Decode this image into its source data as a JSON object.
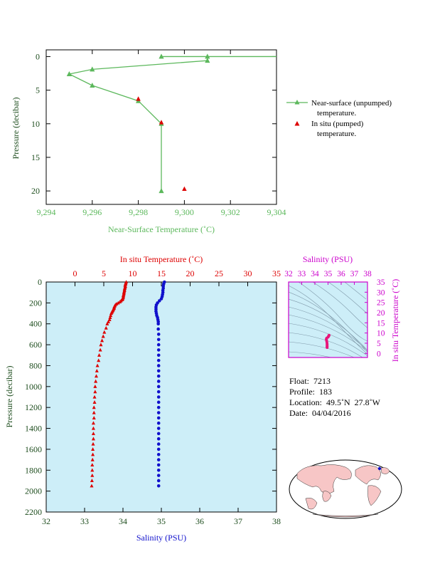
{
  "colors": {
    "near_surface": "#5cb85c",
    "pumped": "#dd0000",
    "insitu_temp": "#dd0000",
    "salinity": "#1010cc",
    "salinity_axis": "#cc00cc",
    "axis_text": "#1f4e1f",
    "plot_bg": "#cdeef8",
    "land": "#f7c6c6",
    "ocean": "#ffffff"
  },
  "chart_data": [
    {
      "type": "line",
      "xlabel": "Near-Surface Temperature (˚C)",
      "ylabel": "Pressure (decibar)",
      "xlim": [
        9.294,
        9.304
      ],
      "ylim": [
        22,
        -1
      ],
      "x_ticks": [
        9.294,
        9.296,
        9.298,
        9.3,
        9.302,
        9.304
      ],
      "x_tick_labels": [
        "9,294",
        "9,296",
        "9,298",
        "9,300",
        "9,302",
        "9,304"
      ],
      "y_ticks": [
        0,
        5,
        10,
        15,
        20
      ],
      "legend_position": "right",
      "series": [
        {
          "name": "Near-surface (unpumped) temperature.",
          "legend_line1": "Near-surface (unpumped)",
          "legend_line2": "temperature.",
          "marker": "triangle-line",
          "points": [
            {
              "x": 9.304,
              "y": 0.0
            },
            {
              "x": 9.299,
              "y": 0.0
            },
            {
              "x": 9.301,
              "y": 0.0
            },
            {
              "x": 9.301,
              "y": 0.6
            },
            {
              "x": 9.296,
              "y": 1.9
            },
            {
              "x": 9.295,
              "y": 2.6
            },
            {
              "x": 9.296,
              "y": 4.3
            },
            {
              "x": 9.298,
              "y": 6.6
            },
            {
              "x": 9.299,
              "y": 10.0
            },
            {
              "x": 9.299,
              "y": 20.0
            }
          ]
        },
        {
          "name": "In situ (pumped) temperature.",
          "legend_line1": "In situ (pumped)",
          "legend_line2": "temperature.",
          "marker": "triangle",
          "points": [
            {
              "x": 9.298,
              "y": 6.3
            },
            {
              "x": 9.299,
              "y": 9.8
            },
            {
              "x": 9.3,
              "y": 19.7
            }
          ]
        }
      ]
    },
    {
      "type": "scatter",
      "ylabel": "Pressure (decibar)",
      "ylim": [
        2200,
        0
      ],
      "y_ticks": [
        0,
        200,
        400,
        600,
        800,
        1000,
        1200,
        1400,
        1600,
        1800,
        2000,
        2200
      ],
      "top_axis": {
        "label": "In situ Temperature (˚C)",
        "lim": [
          -5,
          35
        ],
        "ticks": [
          0,
          5,
          10,
          15,
          20,
          25,
          30,
          35
        ]
      },
      "bottom_axis": {
        "label": "Salinity (PSU)",
        "lim": [
          32,
          38
        ],
        "ticks": [
          32,
          33,
          34,
          35,
          36,
          37,
          38
        ]
      },
      "series": [
        {
          "name": "In situ Temperature",
          "axis": "top",
          "points": [
            [
              8.9,
              0
            ],
            [
              8.8,
              10
            ],
            [
              8.8,
              20
            ],
            [
              8.7,
              30
            ],
            [
              8.75,
              40
            ],
            [
              8.7,
              50
            ],
            [
              8.65,
              60
            ],
            [
              8.6,
              70
            ],
            [
              8.6,
              80
            ],
            [
              8.55,
              90
            ],
            [
              8.5,
              100
            ],
            [
              8.5,
              110
            ],
            [
              8.45,
              120
            ],
            [
              8.4,
              130
            ],
            [
              8.4,
              140
            ],
            [
              8.35,
              150
            ],
            [
              8.3,
              160
            ],
            [
              8.2,
              170
            ],
            [
              8.0,
              180
            ],
            [
              7.8,
              190
            ],
            [
              7.5,
              200
            ],
            [
              7.2,
              210
            ],
            [
              7.0,
              220
            ],
            [
              6.9,
              230
            ],
            [
              6.8,
              240
            ],
            [
              6.8,
              250
            ],
            [
              6.7,
              260
            ],
            [
              6.6,
              270
            ],
            [
              6.5,
              280
            ],
            [
              6.4,
              290
            ],
            [
              6.3,
              300
            ],
            [
              6.2,
              320
            ],
            [
              6.1,
              340
            ],
            [
              6.0,
              360
            ],
            [
              5.8,
              380
            ],
            [
              5.6,
              400
            ],
            [
              5.4,
              440
            ],
            [
              5.1,
              480
            ],
            [
              4.9,
              520
            ],
            [
              4.7,
              560
            ],
            [
              4.5,
              600
            ],
            [
              4.4,
              650
            ],
            [
              4.2,
              700
            ],
            [
              4.1,
              750
            ],
            [
              3.9,
              800
            ],
            [
              3.8,
              850
            ],
            [
              3.7,
              900
            ],
            [
              3.6,
              950
            ],
            [
              3.5,
              1000
            ],
            [
              3.5,
              1050
            ],
            [
              3.4,
              1100
            ],
            [
              3.4,
              1150
            ],
            [
              3.3,
              1200
            ],
            [
              3.3,
              1250
            ],
            [
              3.3,
              1300
            ],
            [
              3.2,
              1350
            ],
            [
              3.2,
              1400
            ],
            [
              3.2,
              1450
            ],
            [
              3.2,
              1500
            ],
            [
              3.15,
              1550
            ],
            [
              3.1,
              1600
            ],
            [
              3.1,
              1650
            ],
            [
              3.05,
              1700
            ],
            [
              3.0,
              1750
            ],
            [
              3.0,
              1800
            ],
            [
              3.0,
              1850
            ],
            [
              2.95,
              1900
            ],
            [
              2.9,
              1950
            ]
          ]
        },
        {
          "name": "Salinity",
          "axis": "bottom",
          "points": [
            [
              35.08,
              0
            ],
            [
              35.06,
              20
            ],
            [
              35.05,
              40
            ],
            [
              35.05,
              60
            ],
            [
              35.04,
              80
            ],
            [
              35.04,
              100
            ],
            [
              35.03,
              120
            ],
            [
              35.02,
              140
            ],
            [
              35.0,
              160
            ],
            [
              34.95,
              180
            ],
            [
              34.9,
              200
            ],
            [
              34.87,
              220
            ],
            [
              34.86,
              240
            ],
            [
              34.86,
              260
            ],
            [
              34.86,
              280
            ],
            [
              34.87,
              300
            ],
            [
              34.88,
              320
            ],
            [
              34.9,
              340
            ],
            [
              34.91,
              360
            ],
            [
              34.92,
              380
            ],
            [
              34.92,
              400
            ],
            [
              34.92,
              450
            ],
            [
              34.93,
              500
            ],
            [
              34.93,
              550
            ],
            [
              34.93,
              600
            ],
            [
              34.93,
              650
            ],
            [
              34.93,
              700
            ],
            [
              34.93,
              750
            ],
            [
              34.93,
              800
            ],
            [
              34.93,
              850
            ],
            [
              34.93,
              900
            ],
            [
              34.93,
              950
            ],
            [
              34.93,
              1000
            ],
            [
              34.93,
              1050
            ],
            [
              34.93,
              1100
            ],
            [
              34.93,
              1150
            ],
            [
              34.93,
              1200
            ],
            [
              34.93,
              1250
            ],
            [
              34.93,
              1300
            ],
            [
              34.93,
              1350
            ],
            [
              34.93,
              1400
            ],
            [
              34.93,
              1450
            ],
            [
              34.93,
              1500
            ],
            [
              34.93,
              1550
            ],
            [
              34.93,
              1600
            ],
            [
              34.93,
              1650
            ],
            [
              34.93,
              1700
            ],
            [
              34.93,
              1750
            ],
            [
              34.93,
              1800
            ],
            [
              34.93,
              1850
            ],
            [
              34.93,
              1900
            ],
            [
              34.93,
              1950
            ]
          ]
        }
      ]
    },
    {
      "type": "scatter",
      "xlabel": "Salinity (PSU)",
      "ylabel": "In situ Temperature (˚C)",
      "xlim": [
        32,
        38
      ],
      "ylim": [
        -2,
        35
      ],
      "x_ticks": [
        32,
        33,
        34,
        35,
        36,
        37,
        38
      ],
      "y_ticks": [
        0,
        5,
        10,
        15,
        20,
        25,
        30,
        35
      ],
      "series": [
        {
          "name": "T-S",
          "points": [
            [
              34.93,
              2.9
            ],
            [
              34.93,
              3.2
            ],
            [
              34.93,
              3.5
            ],
            [
              34.93,
              4.0
            ],
            [
              34.93,
              4.5
            ],
            [
              34.92,
              5.2
            ],
            [
              34.9,
              6.0
            ],
            [
              34.88,
              6.6
            ],
            [
              34.87,
              7.0
            ],
            [
              34.9,
              7.5
            ],
            [
              35.0,
              8.0
            ],
            [
              35.04,
              8.4
            ],
            [
              35.06,
              8.7
            ],
            [
              35.08,
              8.9
            ]
          ]
        }
      ]
    }
  ],
  "float_info": {
    "float": "Float:  7213",
    "profile": "Profile:  183",
    "location": "Location:  49.5˚N  27.8˚W",
    "date": "Date:  04/04/2016"
  },
  "map": {
    "marker_color": "#1010cc"
  }
}
